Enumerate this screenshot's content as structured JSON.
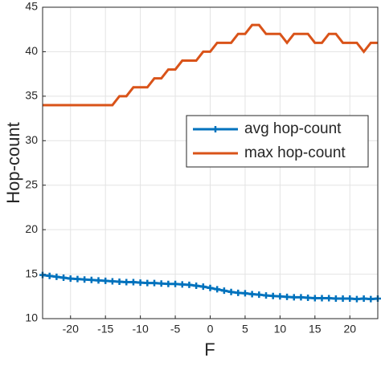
{
  "chart_data": {
    "type": "line",
    "x_label": "F",
    "y_label": "Hop-count",
    "x": [
      -24,
      -23,
      -22,
      -21,
      -20,
      -19,
      -18,
      -17,
      -16,
      -15,
      -14,
      -13,
      -12,
      -11,
      -10,
      -9,
      -8,
      -7,
      -6,
      -5,
      -4,
      -3,
      -2,
      -1,
      0,
      1,
      2,
      3,
      4,
      5,
      6,
      7,
      8,
      9,
      10,
      11,
      12,
      13,
      14,
      15,
      16,
      17,
      18,
      19,
      20,
      21,
      22,
      23,
      24
    ],
    "series": [
      {
        "name": "avg hop-count",
        "color": "#0072bd",
        "marker": "+",
        "values": [
          14.9,
          14.8,
          14.7,
          14.6,
          14.5,
          14.45,
          14.4,
          14.35,
          14.3,
          14.25,
          14.2,
          14.15,
          14.1,
          14.1,
          14.05,
          14.0,
          14.0,
          13.95,
          13.9,
          13.9,
          13.85,
          13.8,
          13.7,
          13.6,
          13.45,
          13.3,
          13.15,
          13.0,
          12.9,
          12.85,
          12.75,
          12.7,
          12.6,
          12.55,
          12.5,
          12.45,
          12.4,
          12.4,
          12.35,
          12.3,
          12.3,
          12.3,
          12.25,
          12.25,
          12.25,
          12.2,
          12.25,
          12.2,
          12.25
        ]
      },
      {
        "name": "max hop-count",
        "color": "#d95319",
        "values": [
          34,
          34,
          34,
          34,
          34,
          34,
          34,
          34,
          34,
          34,
          34,
          35,
          35,
          36,
          36,
          36,
          37,
          37,
          38,
          38,
          39,
          39,
          39,
          40,
          40,
          41,
          41,
          41,
          42,
          42,
          43,
          43,
          42,
          42,
          42,
          41,
          42,
          42,
          42,
          41,
          41,
          42,
          42,
          41,
          41,
          41,
          40,
          41,
          41
        ]
      }
    ],
    "xlim": [
      -24,
      24
    ],
    "xticks": [
      -20,
      -15,
      -10,
      -5,
      0,
      5,
      10,
      15,
      20
    ],
    "ylim": [
      10,
      45
    ],
    "yticks": [
      10,
      15,
      20,
      25,
      30,
      35,
      40,
      45
    ],
    "grid": true,
    "legend": "east"
  }
}
